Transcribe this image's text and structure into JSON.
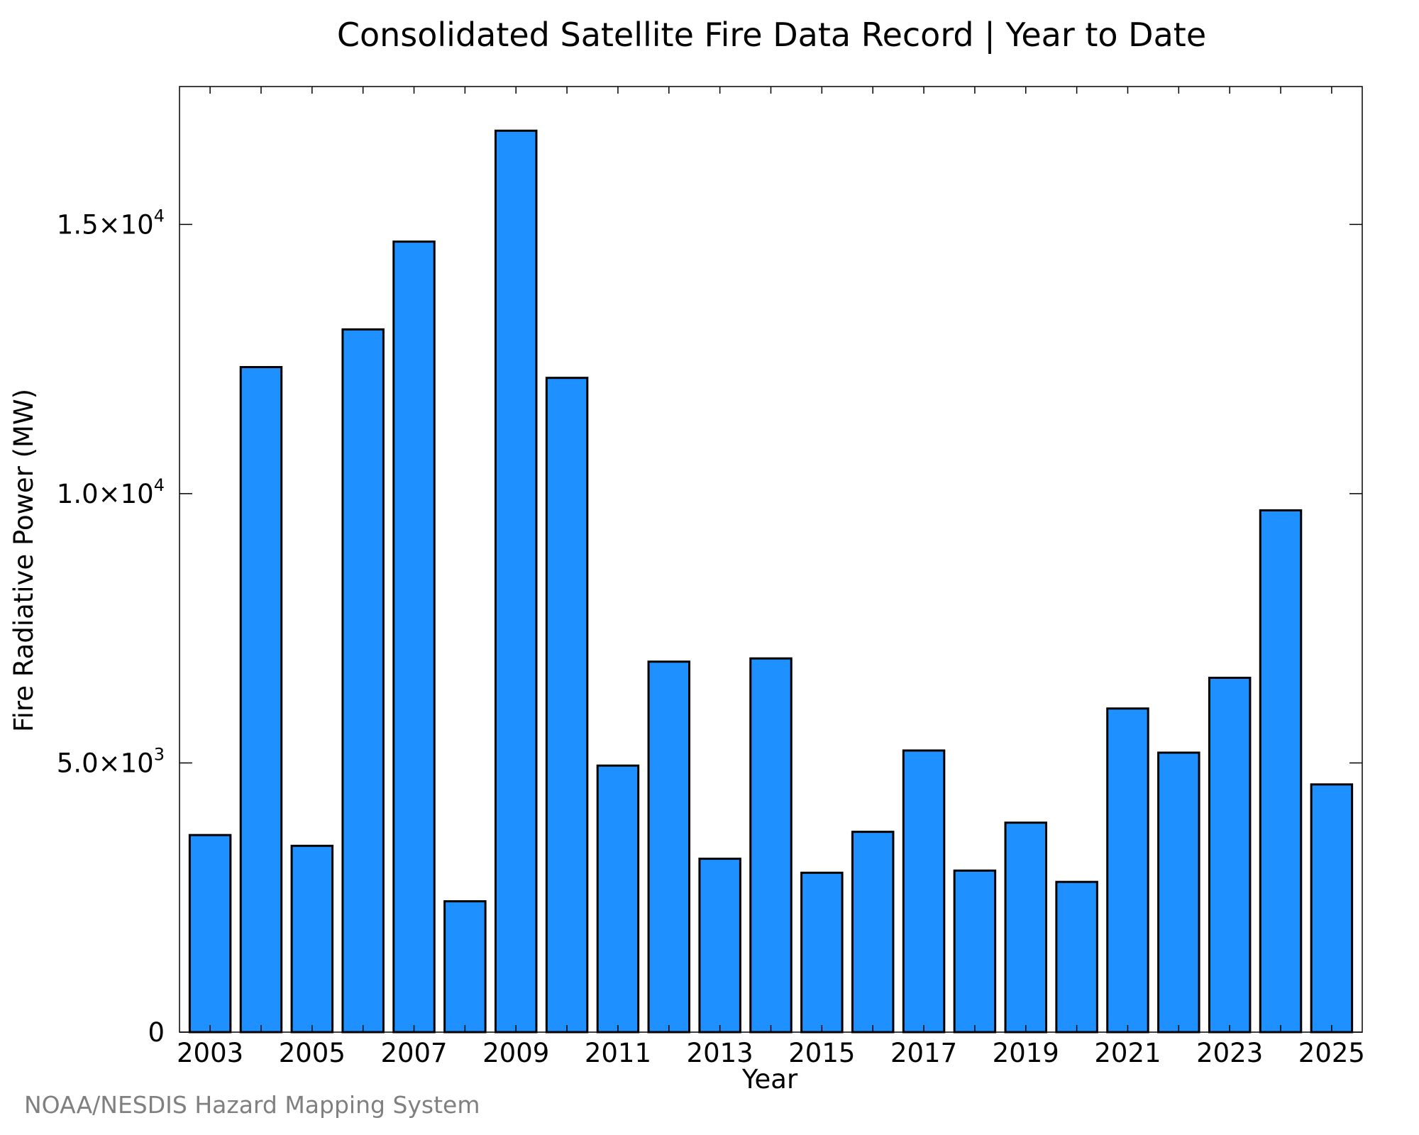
{
  "chart_data": {
    "type": "bar",
    "title": "Consolidated Satellite Fire Data Record | Year to Date",
    "xlabel": "Year",
    "ylabel": "Fire Radiative Power (MW)",
    "categories": [
      "2003",
      "2004",
      "2005",
      "2006",
      "2007",
      "2008",
      "2009",
      "2010",
      "2011",
      "2012",
      "2013",
      "2014",
      "2015",
      "2016",
      "2017",
      "2018",
      "2019",
      "2020",
      "2021",
      "2022",
      "2023",
      "2024",
      "2025"
    ],
    "values": [
      3660,
      12350,
      3460,
      13050,
      14680,
      2430,
      16740,
      12150,
      4950,
      6880,
      3220,
      6940,
      2960,
      3720,
      5230,
      3000,
      3890,
      2790,
      6010,
      5190,
      6580,
      9690,
      4600
    ],
    "ylim": [
      0,
      17560
    ],
    "y_ticks": [
      {
        "value": 0,
        "mantissa": "0",
        "exponent": ""
      },
      {
        "value": 5000,
        "mantissa": "5.0×10",
        "exponent": "3"
      },
      {
        "value": 10000,
        "mantissa": "1.0×10",
        "exponent": "4"
      },
      {
        "value": 15000,
        "mantissa": "1.5×10",
        "exponent": "4"
      }
    ],
    "x_tick_labels": [
      "2003",
      "2005",
      "2007",
      "2009",
      "2011",
      "2013",
      "2015",
      "2017",
      "2019",
      "2021",
      "2023",
      "2025"
    ],
    "bar_color": "#1e90ff",
    "edge_color": "#000000",
    "grid": false,
    "legend": "none"
  },
  "footer": {
    "source": "NOAA/NESDIS Hazard Mapping System"
  }
}
